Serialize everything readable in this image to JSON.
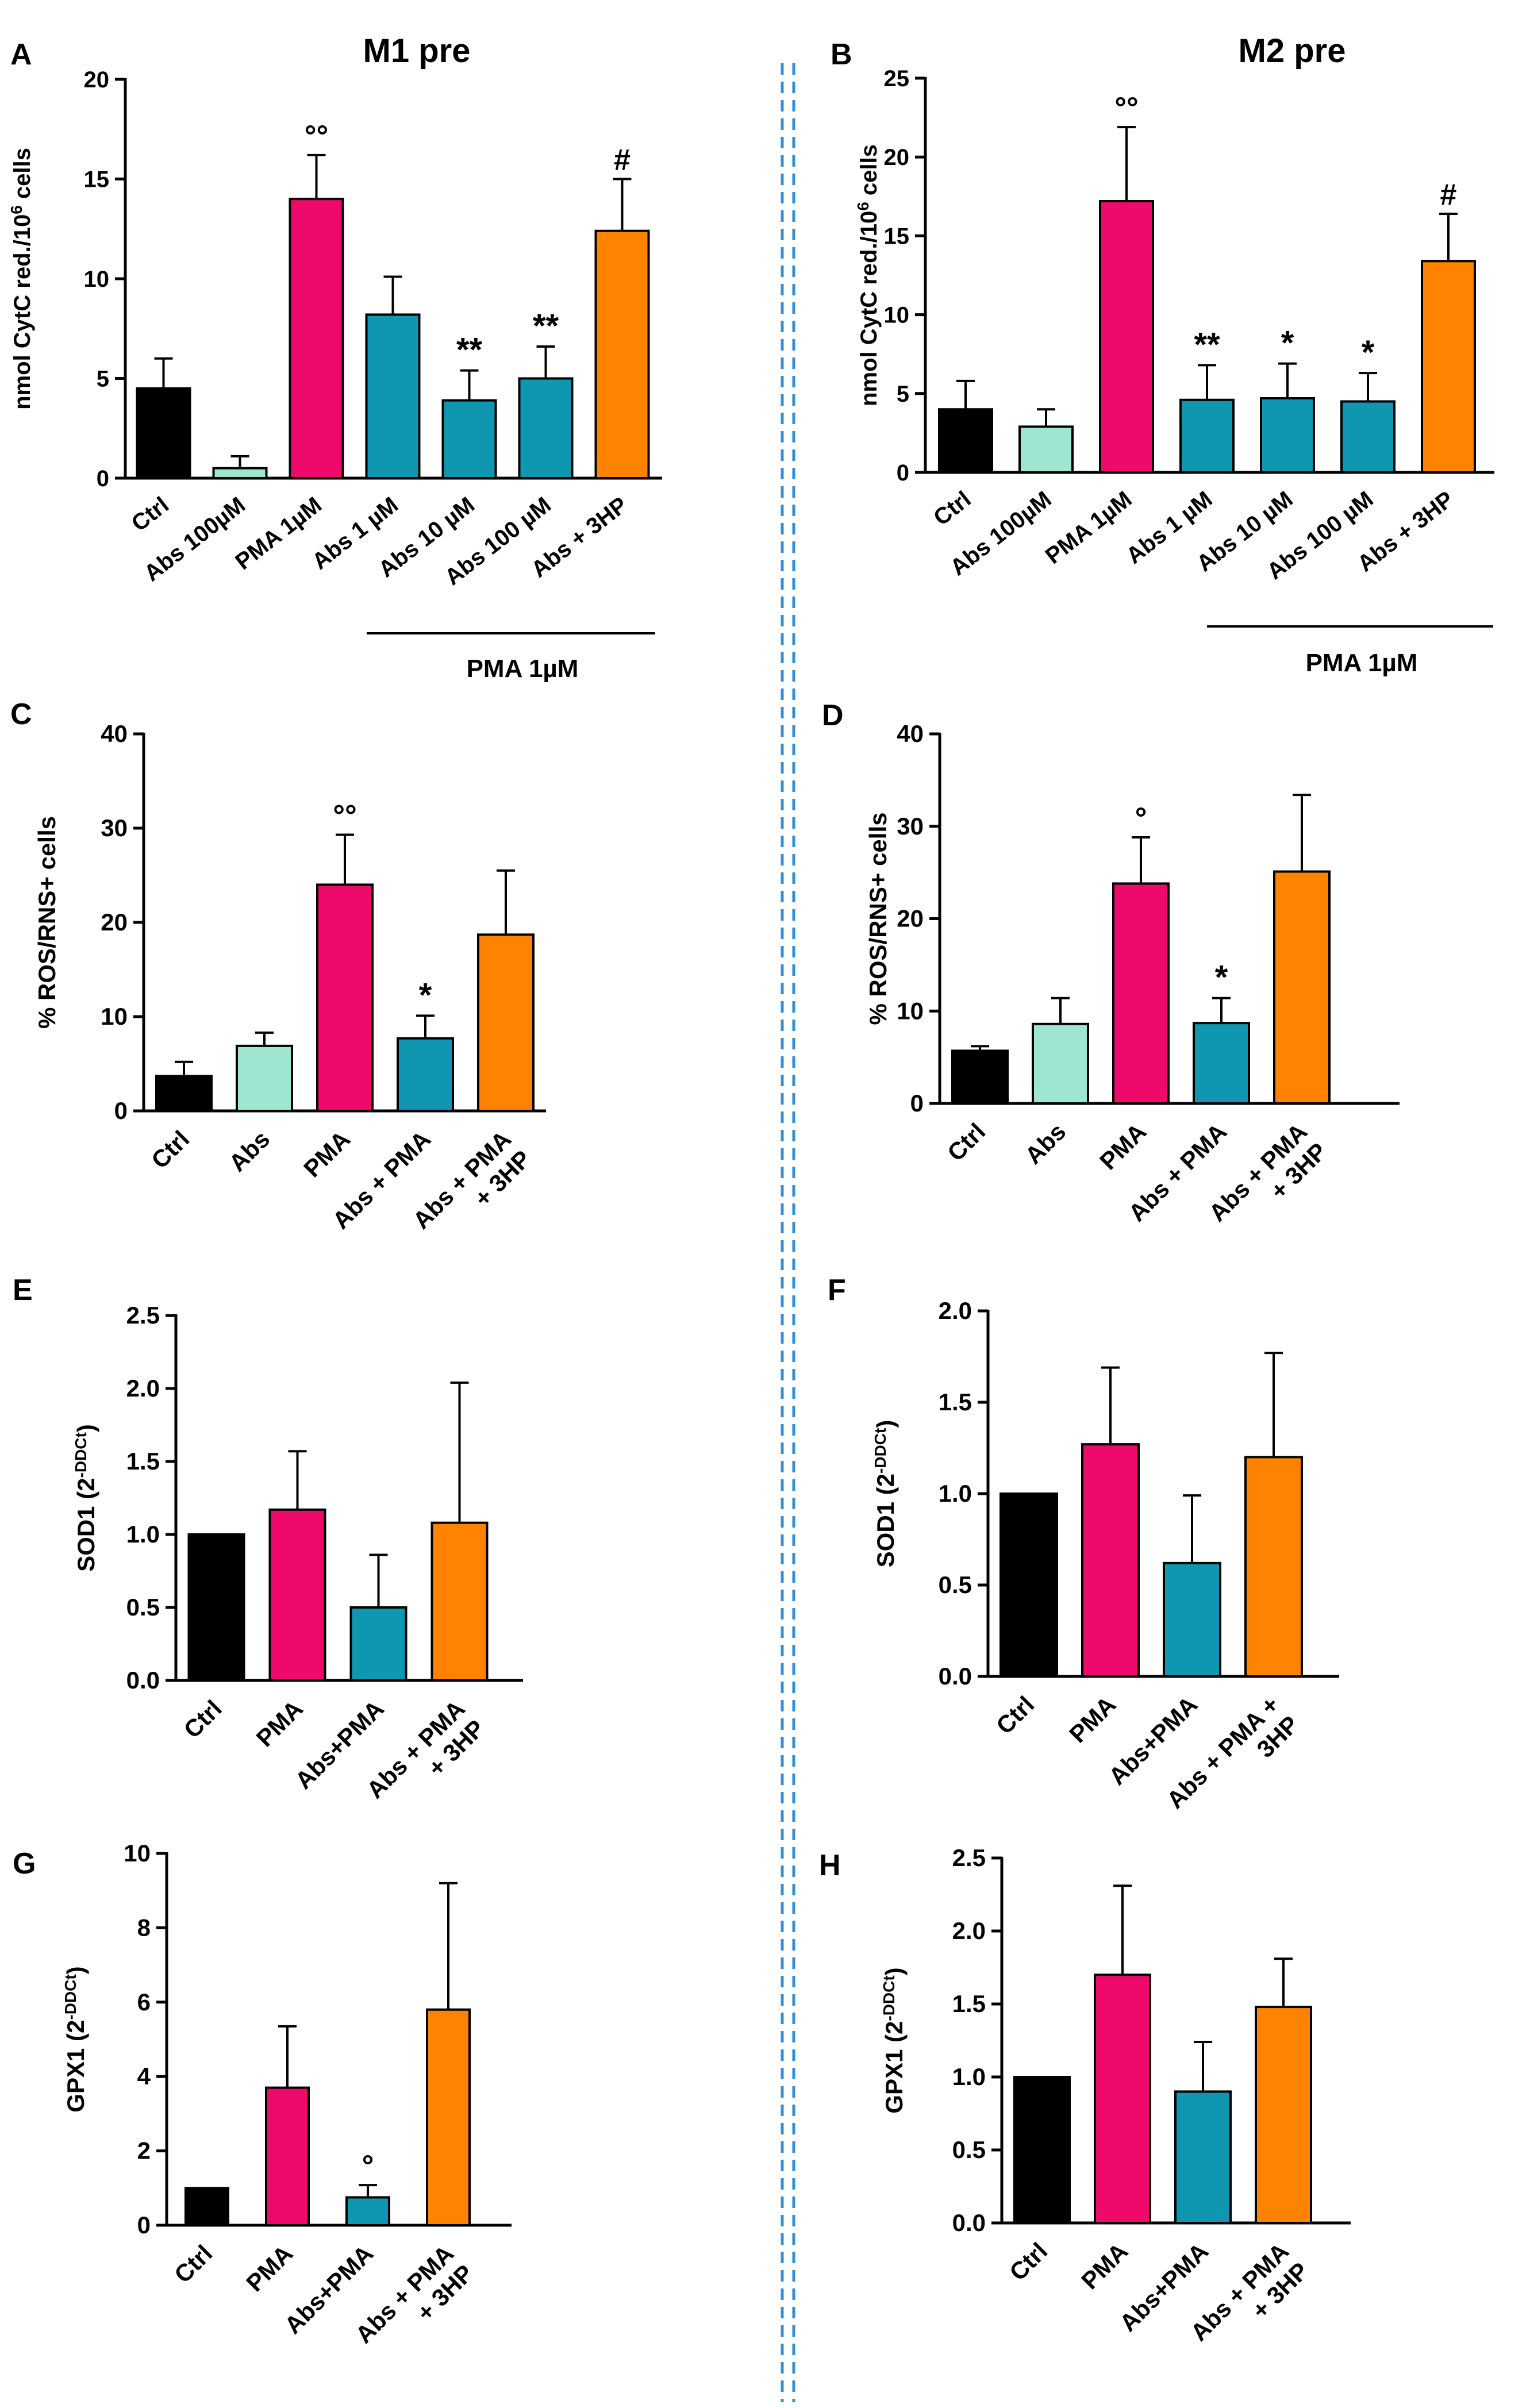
{
  "colors": {
    "ctrl": "#000000",
    "abs": "#9ee6d2",
    "pma": "#ee0a6a",
    "absPma": "#0f96b0",
    "hp3": "#ff8200",
    "divider": "#2f8fd8"
  },
  "chart_data": [
    {
      "id": "A",
      "letter": "A",
      "type": "bar",
      "title": "M1 pre",
      "ylabel_main": "nmol CytC red./10",
      "ylabel_sup": "6",
      "ylabel_tail": " cells",
      "ylim": [
        0,
        20
      ],
      "ticks": [
        0,
        5,
        10,
        15,
        20
      ],
      "tick_labels": [
        "0",
        "5",
        "10",
        "15",
        "20"
      ],
      "categories": [
        "Ctrl",
        "Abs 100µM",
        "PMA 1µM",
        "Abs 1 µM",
        "Abs 10 µM",
        "Abs 100 µM",
        "Abs + 3HP"
      ],
      "values": [
        4.5,
        0.5,
        14.0,
        8.2,
        3.9,
        5.0,
        12.4
      ],
      "errors": [
        1.5,
        0.6,
        2.2,
        1.9,
        1.5,
        1.6,
        2.6
      ],
      "annotations": [
        "",
        "",
        "°°",
        "",
        "**",
        "**",
        "#"
      ],
      "color_keys": [
        "ctrl",
        "abs",
        "pma",
        "absPma",
        "absPma",
        "absPma",
        "hp3"
      ],
      "group_label": "PMA 1µM"
    },
    {
      "id": "B",
      "letter": "B",
      "type": "bar",
      "title": "M2 pre",
      "ylabel_main": "nmol CytC red./10",
      "ylabel_sup": "6",
      "ylabel_tail": " cells",
      "ylim": [
        0,
        25
      ],
      "ticks": [
        0,
        5,
        10,
        15,
        20,
        25
      ],
      "tick_labels": [
        "0",
        "5",
        "10",
        "15",
        "20",
        "25"
      ],
      "categories": [
        "Ctrl",
        "Abs 100µM",
        "PMA 1µM",
        "Abs 1 µM",
        "Abs 10 µM",
        "Abs 100 µM",
        "Abs + 3HP"
      ],
      "values": [
        4.0,
        2.9,
        17.2,
        4.6,
        4.7,
        4.5,
        13.4
      ],
      "errors": [
        1.8,
        1.1,
        4.7,
        2.2,
        2.2,
        1.8,
        3.0
      ],
      "annotations": [
        "",
        "",
        "°°",
        "**",
        "*",
        "*",
        "#"
      ],
      "color_keys": [
        "ctrl",
        "abs",
        "pma",
        "absPma",
        "absPma",
        "absPma",
        "hp3"
      ],
      "group_label": "PMA 1µM"
    },
    {
      "id": "C",
      "letter": "C",
      "type": "bar",
      "title": "",
      "ylabel_main": "% ROS/RNS+ cells",
      "ylabel_sup": "",
      "ylabel_tail": "",
      "ylim": [
        0,
        40
      ],
      "ticks": [
        0,
        10,
        20,
        30,
        40
      ],
      "tick_labels": [
        "0",
        "10",
        "20",
        "30",
        "40"
      ],
      "categories": [
        "Ctrl",
        "Abs",
        "PMA",
        "Abs + PMA",
        "Abs + PMA|+ 3HP"
      ],
      "values": [
        3.7,
        6.9,
        24.0,
        7.7,
        18.7
      ],
      "errors": [
        1.5,
        1.4,
        5.3,
        2.4,
        6.8
      ],
      "annotations": [
        "",
        "",
        "°°",
        "*",
        ""
      ],
      "color_keys": [
        "ctrl",
        "abs",
        "pma",
        "absPma",
        "hp3"
      ],
      "group_label": ""
    },
    {
      "id": "D",
      "letter": "D",
      "type": "bar",
      "title": "",
      "ylabel_main": "% ROS/RNS+ cells",
      "ylabel_sup": "",
      "ylabel_tail": "",
      "ylim": [
        0,
        40
      ],
      "ticks": [
        0,
        10,
        20,
        30,
        40
      ],
      "tick_labels": [
        "0",
        "10",
        "20",
        "30",
        "40"
      ],
      "categories": [
        "Ctrl",
        "Abs",
        "PMA",
        "Abs + PMA",
        "Abs + PMA|+ 3HP"
      ],
      "values": [
        5.7,
        8.6,
        23.8,
        8.7,
        25.1
      ],
      "errors": [
        0.5,
        2.8,
        5.0,
        2.7,
        8.3
      ],
      "annotations": [
        "",
        "",
        "°",
        "*",
        ""
      ],
      "color_keys": [
        "ctrl",
        "abs",
        "pma",
        "absPma",
        "hp3"
      ],
      "group_label": ""
    },
    {
      "id": "E",
      "letter": "E",
      "type": "bar",
      "title": "",
      "ylabel_main": "SOD1 (2",
      "ylabel_sup": "-DDCt",
      "ylabel_tail": ")",
      "ylim": [
        0,
        2.5
      ],
      "ticks": [
        0,
        0.5,
        1.0,
        1.5,
        2.0,
        2.5
      ],
      "tick_labels": [
        "0.0",
        "0.5",
        "1.0",
        "1.5",
        "2.0",
        "2.5"
      ],
      "categories": [
        "Ctrl",
        "PMA",
        "Abs+PMA",
        "Abs + PMA|+ 3HP"
      ],
      "values": [
        1.0,
        1.17,
        0.5,
        1.08
      ],
      "errors": [
        0,
        0.4,
        0.36,
        0.96
      ],
      "annotations": [
        "",
        "",
        "",
        ""
      ],
      "color_keys": [
        "ctrl",
        "pma",
        "absPma",
        "hp3"
      ],
      "group_label": ""
    },
    {
      "id": "F",
      "letter": "F",
      "type": "bar",
      "title": "",
      "ylabel_main": "SOD1 (2",
      "ylabel_sup": "-DDCt",
      "ylabel_tail": ")",
      "ylim": [
        0,
        2.0
      ],
      "ticks": [
        0,
        0.5,
        1.0,
        1.5,
        2.0
      ],
      "tick_labels": [
        "0.0",
        "0.5",
        "1.0",
        "1.5",
        "2.0"
      ],
      "categories": [
        "Ctrl",
        "PMA",
        "Abs+PMA",
        "Abs + PMA +|3HP"
      ],
      "values": [
        1.0,
        1.27,
        0.62,
        1.2
      ],
      "errors": [
        0,
        0.42,
        0.37,
        0.57
      ],
      "annotations": [
        "",
        "",
        "",
        ""
      ],
      "color_keys": [
        "ctrl",
        "pma",
        "absPma",
        "hp3"
      ],
      "group_label": ""
    },
    {
      "id": "G",
      "letter": "G",
      "type": "bar",
      "title": "",
      "ylabel_main": "GPX1 (2",
      "ylabel_sup": "-DDCt",
      "ylabel_tail": ")",
      "ylim": [
        0,
        10
      ],
      "ticks": [
        0,
        2,
        4,
        6,
        8,
        10
      ],
      "tick_labels": [
        "0",
        "2",
        "4",
        "6",
        "8",
        "10"
      ],
      "categories": [
        "Ctrl",
        "PMA",
        "Abs+PMA",
        "Abs + PMA|+ 3HP"
      ],
      "values": [
        1.0,
        3.7,
        0.75,
        5.8
      ],
      "errors": [
        0,
        1.65,
        0.33,
        3.4
      ],
      "annotations": [
        "",
        "",
        "°",
        ""
      ],
      "color_keys": [
        "ctrl",
        "pma",
        "absPma",
        "hp3"
      ],
      "group_label": ""
    },
    {
      "id": "H",
      "letter": "H",
      "type": "bar",
      "title": "",
      "ylabel_main": "GPX1 (2",
      "ylabel_sup": "-DDCt",
      "ylabel_tail": ")",
      "ylim": [
        0,
        2.5
      ],
      "ticks": [
        0,
        0.5,
        1.0,
        1.5,
        2.0,
        2.5
      ],
      "tick_labels": [
        "0.0",
        "0.5",
        "1.0",
        "1.5",
        "2.0",
        "2.5"
      ],
      "categories": [
        "Ctrl",
        "PMA",
        "Abs+PMA",
        "Abs + PMA|+ 3HP"
      ],
      "values": [
        1.0,
        1.7,
        0.9,
        1.48
      ],
      "errors": [
        0,
        0.61,
        0.34,
        0.33
      ],
      "annotations": [
        "",
        "",
        "",
        ""
      ],
      "color_keys": [
        "ctrl",
        "pma",
        "absPma",
        "hp3"
      ],
      "group_label": ""
    }
  ]
}
